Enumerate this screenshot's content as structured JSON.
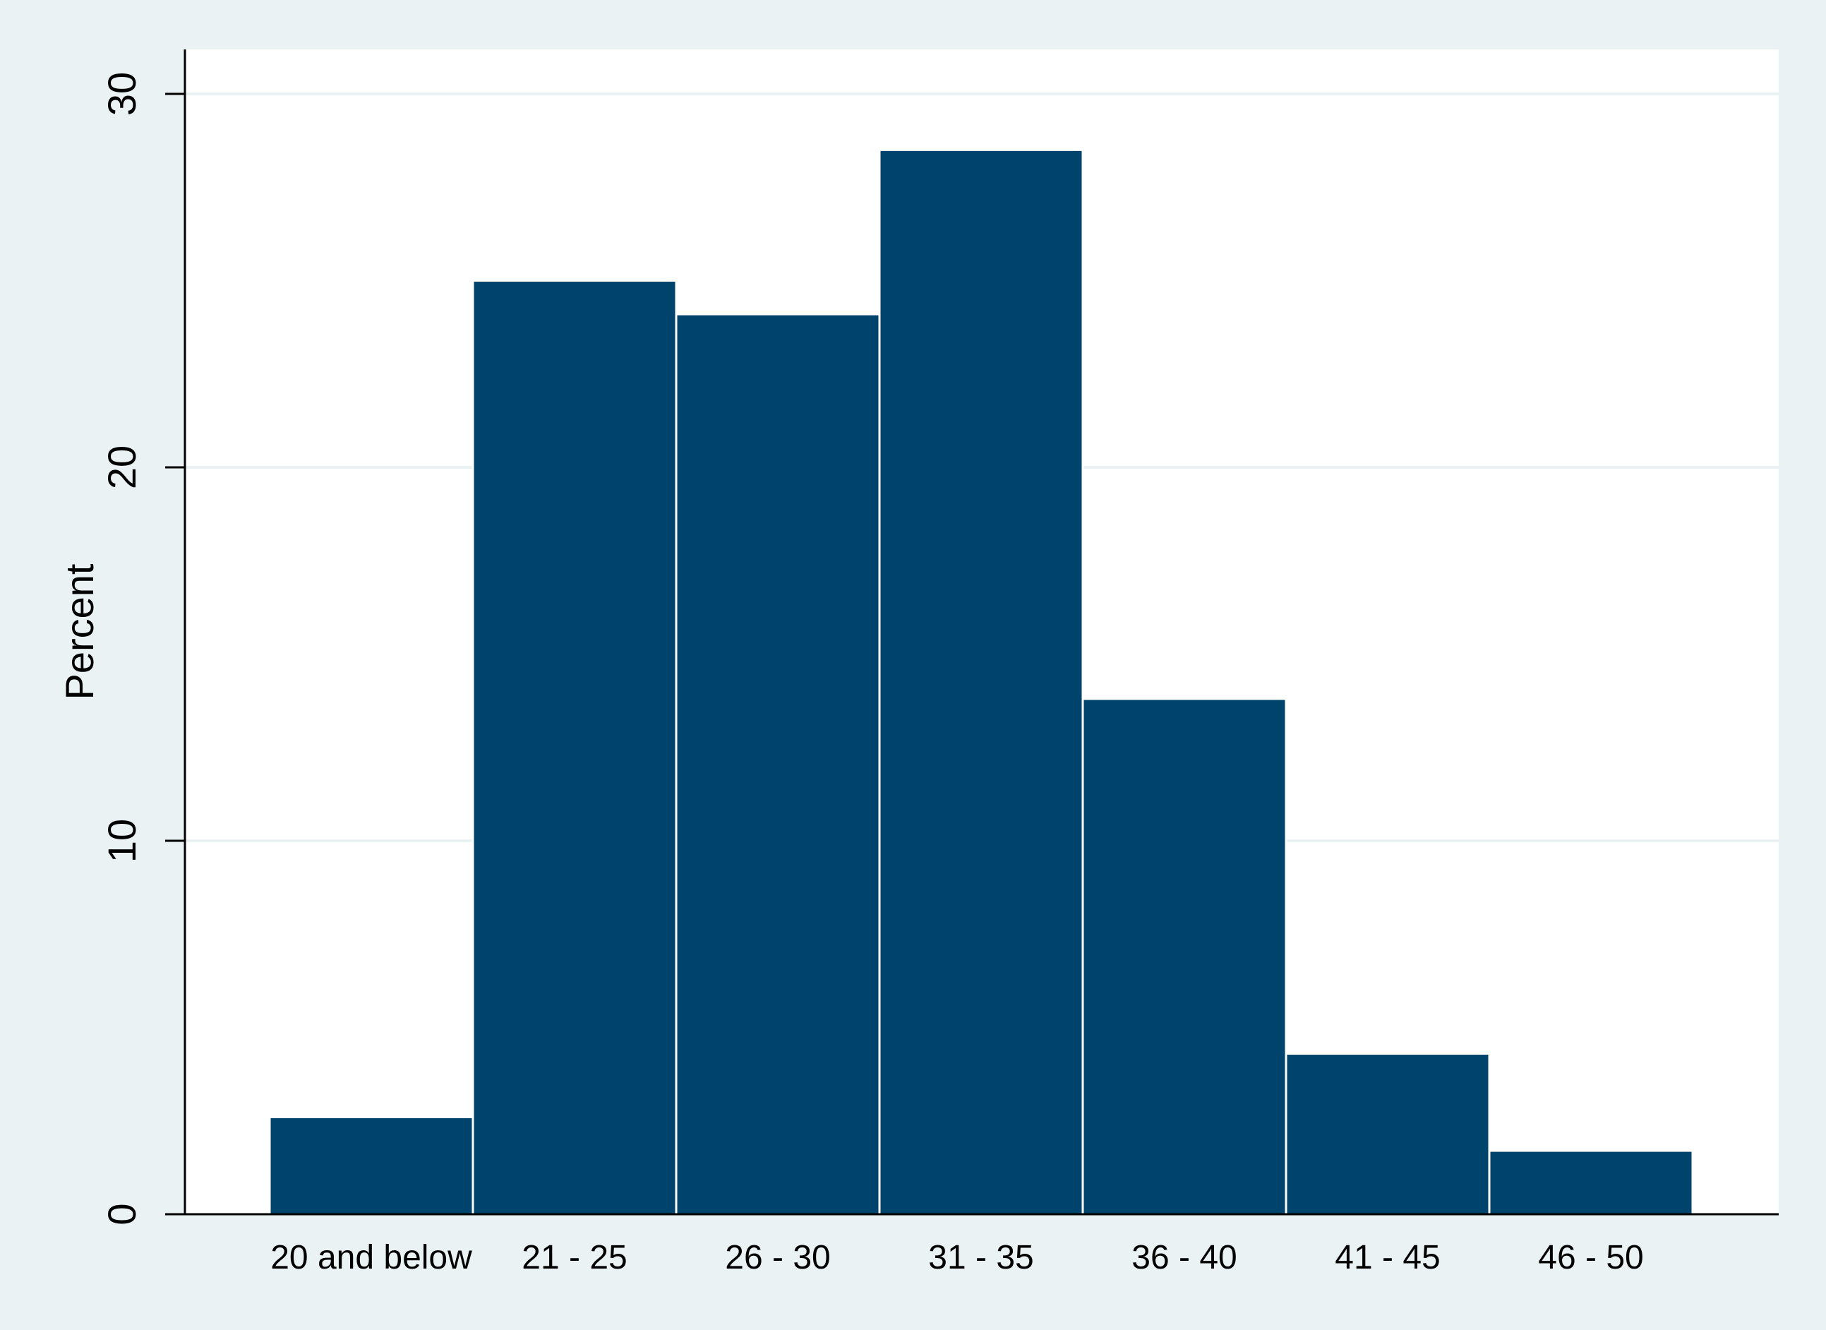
{
  "colors": {
    "outer_background": "#eaf2f3",
    "plot_background": "#ffffff",
    "bar_fill": "#00446e",
    "bar_edge": "#ffffff",
    "gridline": "#eaf2f3",
    "axis": "#000000"
  },
  "chart_data": {
    "type": "bar",
    "title": "",
    "xlabel": "",
    "ylabel": "Percent",
    "categories": [
      "20 and below",
      "21 - 25",
      "26 - 30",
      "31 - 35",
      "36 - 40",
      "41 - 45",
      "46 - 50"
    ],
    "values": [
      2.6,
      25.0,
      24.1,
      28.5,
      13.8,
      4.3,
      1.7
    ],
    "ylim": [
      0,
      30
    ],
    "yticks": [
      0,
      10,
      20,
      30
    ],
    "ytick_labels": [
      "0",
      "10",
      "20",
      "30"
    ],
    "grid": true,
    "legend": "none"
  }
}
